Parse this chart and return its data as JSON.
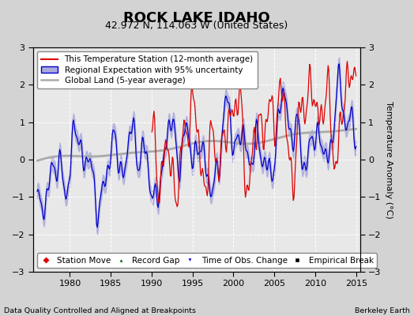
{
  "title": "ROCK LAKE IDAHO",
  "subtitle": "42.972 N, 114.063 W (United States)",
  "xlabel_bottom": "Data Quality Controlled and Aligned at Breakpoints",
  "xlabel_right": "Berkeley Earth",
  "ylabel": "Temperature Anomaly (°C)",
  "xlim": [
    1975.5,
    2015.5
  ],
  "ylim": [
    -3,
    3
  ],
  "yticks": [
    -3,
    -2,
    -1,
    0,
    1,
    2,
    3
  ],
  "xticks": [
    1980,
    1985,
    1990,
    1995,
    2000,
    2005,
    2010,
    2015
  ],
  "bg_color": "#d3d3d3",
  "plot_bg_color": "#e8e8e8",
  "grid_color": "#ffffff",
  "red_color": "#dd0000",
  "blue_color": "#0000cc",
  "blue_fill_color": "#aaaadd",
  "gray_color": "#aaaaaa",
  "title_fontsize": 13,
  "subtitle_fontsize": 9,
  "axis_fontsize": 8,
  "tick_fontsize": 8,
  "legend_fontsize": 7.5
}
